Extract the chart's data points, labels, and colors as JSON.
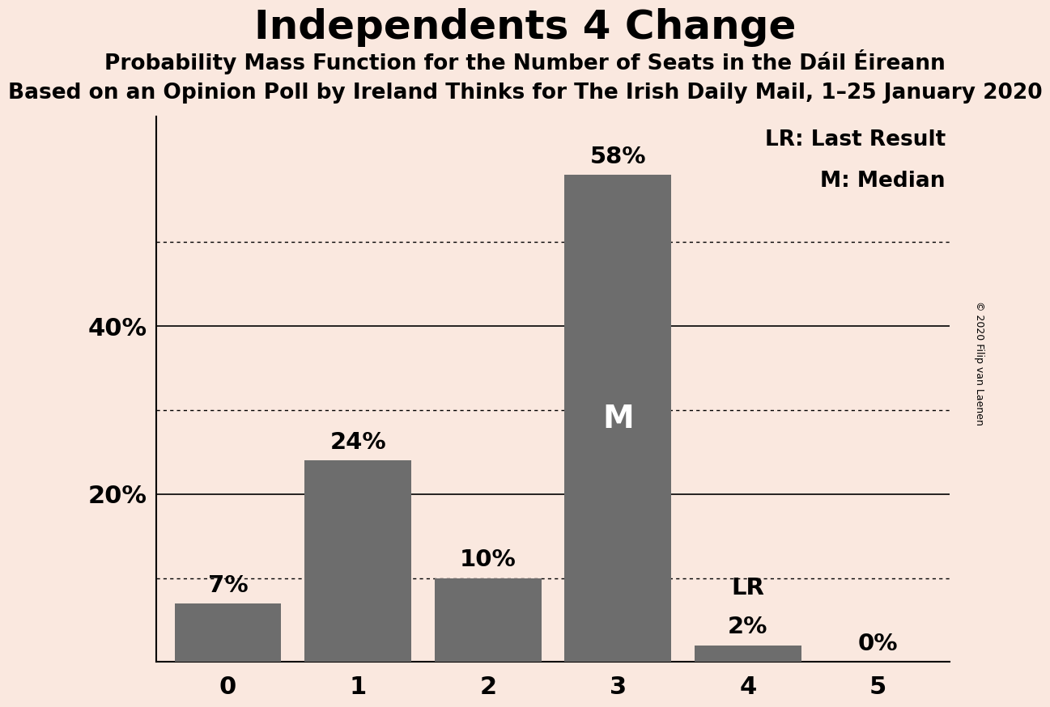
{
  "title": "Independents 4 Change",
  "subtitle1": "Probability Mass Function for the Number of Seats in the Dáil Éireann",
  "subtitle2": "Based on an Opinion Poll by Ireland Thinks for The Irish Daily Mail, 1–25 January 2020",
  "copyright": "© 2020 Filip van Laenen",
  "categories": [
    0,
    1,
    2,
    3,
    4,
    5
  ],
  "values": [
    7,
    24,
    10,
    58,
    2,
    0
  ],
  "bar_color": "#6d6d6d",
  "background_color": "#fae8df",
  "solid_gridlines": [
    20,
    40
  ],
  "dotted_gridlines": [
    10,
    30,
    50
  ],
  "median_bar_index": 3,
  "median_label": "M",
  "lr_bar_index": 4,
  "lr_label": "LR",
  "legend_lr": "LR: Last Result",
  "legend_m": "M: Median",
  "ylim": [
    0,
    65
  ],
  "ytick_positions": [
    20,
    40
  ],
  "ytick_labels": [
    "20%",
    "40%"
  ]
}
